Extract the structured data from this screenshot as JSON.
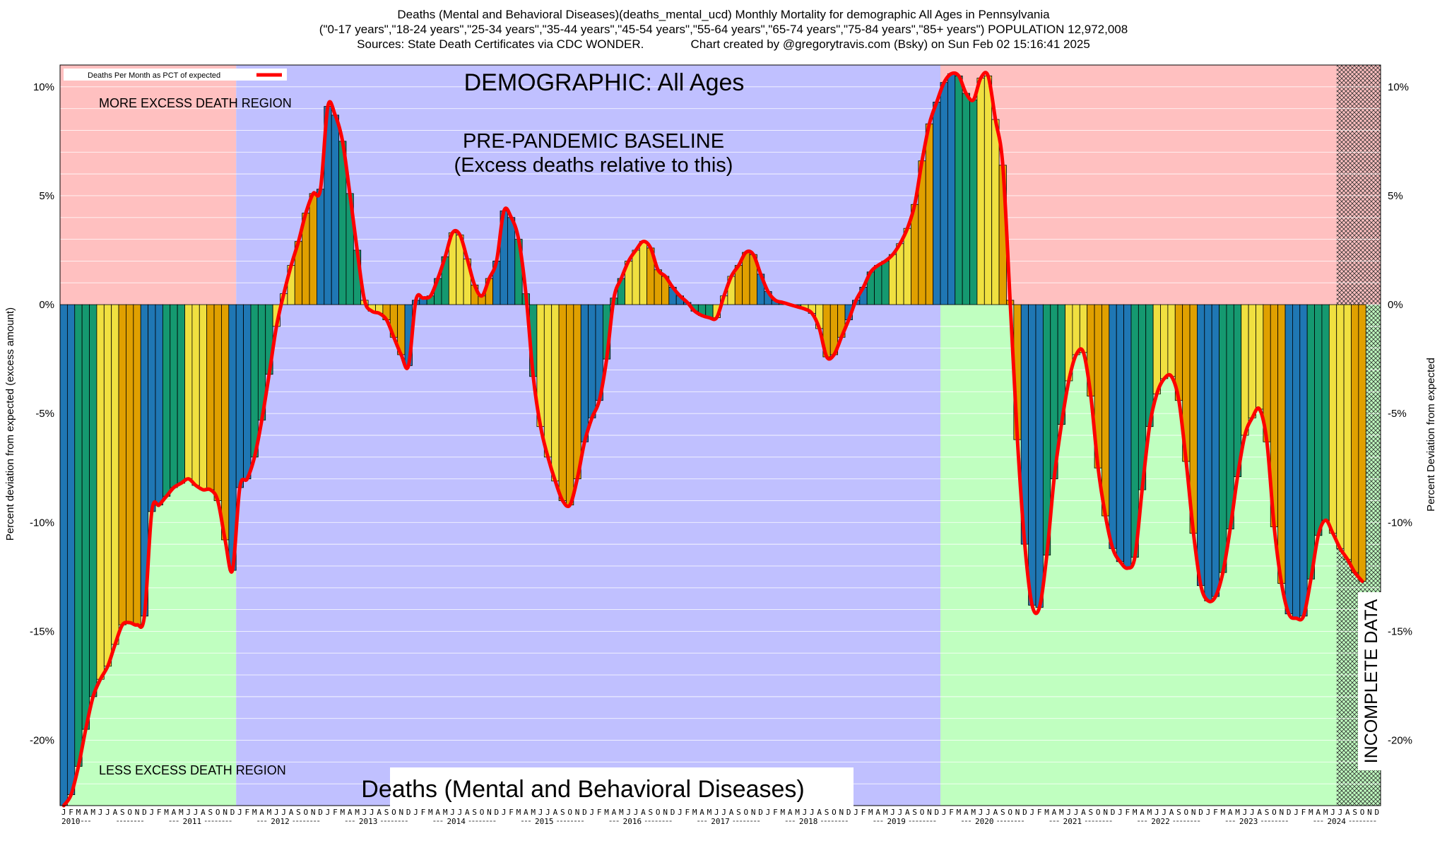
{
  "header": {
    "title_line1": "Deaths (Mental and Behavioral Diseases)(deaths_mental_ucd) Monthly Mortality for demographic All Ages in Pennsylvania",
    "title_line2": "(\"0-17 years\",\"18-24 years\",\"25-34 years\",\"35-44 years\",\"45-54 years\",\"55-64 years\",\"65-74 years\",\"75-84 years\",\"85+ years\") POPULATION 12,972,008",
    "title_line3": "Sources: State Death Certificates via CDC WONDER.              Chart created by @gregorytravis.com (Bsky) on Sun Feb 02 15:16:41 2025"
  },
  "annotations": {
    "demographic": "DEMOGRAPHIC: All Ages",
    "baseline_line1": "PRE-PANDEMIC BASELINE",
    "baseline_line2": "(Excess deaths relative to this)",
    "more_region": "MORE EXCESS DEATH REGION",
    "less_region": "LESS EXCESS DEATH REGION",
    "bottom_title": "Deaths (Mental and Behavioral Diseases)",
    "incomplete": "INCOMPLETE DATA",
    "legend": "Deaths Per Month as PCT of expected"
  },
  "axes": {
    "left_title": "Percent deviation from expected (excess amount)",
    "right_title": "Percent Deviation from expected",
    "y_ticks": [
      {
        "value": 10,
        "label": "10%"
      },
      {
        "value": 5,
        "label": "5%"
      },
      {
        "value": 0,
        "label": "0%"
      },
      {
        "value": -5,
        "label": "-5%"
      },
      {
        "value": -10,
        "label": "-10%"
      },
      {
        "value": -15,
        "label": "-15%"
      },
      {
        "value": -20,
        "label": "-20%"
      }
    ],
    "month_letters": [
      "J",
      "F",
      "M",
      "A",
      "M",
      "J",
      "J",
      "A",
      "S",
      "O",
      "N",
      "D"
    ],
    "year_labels": [
      "2010",
      "2011",
      "2012",
      "2013",
      "2014",
      "2015",
      "2016",
      "2017",
      "2018",
      "2019",
      "2020",
      "2021",
      "2022",
      "2023",
      "2024"
    ]
  },
  "colors": {
    "excess_region": "#ffc0c0",
    "less_region": "#c0ffc0",
    "baseline_region": "#c0c0ff",
    "line": "#ff0000",
    "season_colors": [
      "#1f77b4",
      "#159970",
      "#f0e040",
      "#e0a000"
    ]
  },
  "chart_data": {
    "type": "bar",
    "start": "2010-01",
    "frequency": "monthly",
    "ylim": [
      -23,
      11
    ],
    "baseline_period": [
      "2012-01",
      "2019-12"
    ],
    "incomplete_from": "2024-07",
    "series": [
      {
        "name": "Deaths Per Month as PCT of expected",
        "values": [
          -23.0,
          -22.5,
          -21.2,
          -19.5,
          -18.0,
          -17.2,
          -16.6,
          -15.6,
          -14.7,
          -14.6,
          -14.7,
          -14.3,
          -9.5,
          -9.2,
          -8.8,
          -8.4,
          -8.2,
          -8.0,
          -8.3,
          -8.5,
          -8.5,
          -9.0,
          -10.8,
          -12.2,
          -8.4,
          -8.0,
          -7.0,
          -5.3,
          -3.2,
          -1.0,
          0.5,
          1.8,
          2.9,
          4.2,
          5.1,
          5.3,
          9.1,
          8.7,
          7.5,
          5.1,
          2.5,
          0.2,
          -0.3,
          -0.4,
          -0.7,
          -1.5,
          -2.3,
          -2.8,
          0.2,
          0.3,
          0.4,
          1.2,
          2.2,
          3.3,
          3.2,
          2.1,
          0.9,
          0.4,
          1.2,
          2.0,
          4.3,
          4.0,
          3.0,
          0.5,
          -3.3,
          -5.6,
          -7.0,
          -8.1,
          -9.0,
          -9.2,
          -8.0,
          -6.3,
          -5.2,
          -4.4,
          -2.5,
          0.3,
          1.2,
          2.0,
          2.5,
          2.9,
          2.6,
          1.6,
          1.3,
          0.8,
          0.4,
          0.1,
          -0.3,
          -0.5,
          -0.6,
          -0.6,
          0.4,
          1.3,
          1.8,
          2.4,
          2.3,
          1.4,
          0.6,
          0.2,
          0.1,
          0.0,
          -0.1,
          -0.2,
          -0.4,
          -1.1,
          -2.4,
          -2.3,
          -1.5,
          -0.7,
          0.2,
          0.8,
          1.5,
          1.8,
          2.0,
          2.3,
          2.8,
          3.5,
          4.6,
          6.6,
          8.3,
          9.3,
          10.2,
          10.6,
          10.5,
          9.7,
          9.4,
          10.4,
          10.5,
          8.5,
          6.4,
          0.2,
          -6.2,
          -11.0,
          -13.8,
          -13.9,
          -11.5,
          -8.0,
          -5.5,
          -3.5,
          -2.3,
          -2.2,
          -4.2,
          -7.5,
          -9.7,
          -11.2,
          -11.8,
          -12.1,
          -11.6,
          -8.5,
          -5.6,
          -4.1,
          -3.4,
          -3.3,
          -4.4,
          -7.2,
          -10.5,
          -12.9,
          -13.6,
          -13.4,
          -12.3,
          -10.3,
          -7.9,
          -6.0,
          -5.2,
          -4.8,
          -6.3,
          -10.2,
          -12.8,
          -14.2,
          -14.4,
          -14.3,
          -12.6,
          -10.6,
          -9.9,
          -10.5,
          -11.2,
          -11.7,
          -12.3,
          -12.7
        ]
      }
    ]
  }
}
